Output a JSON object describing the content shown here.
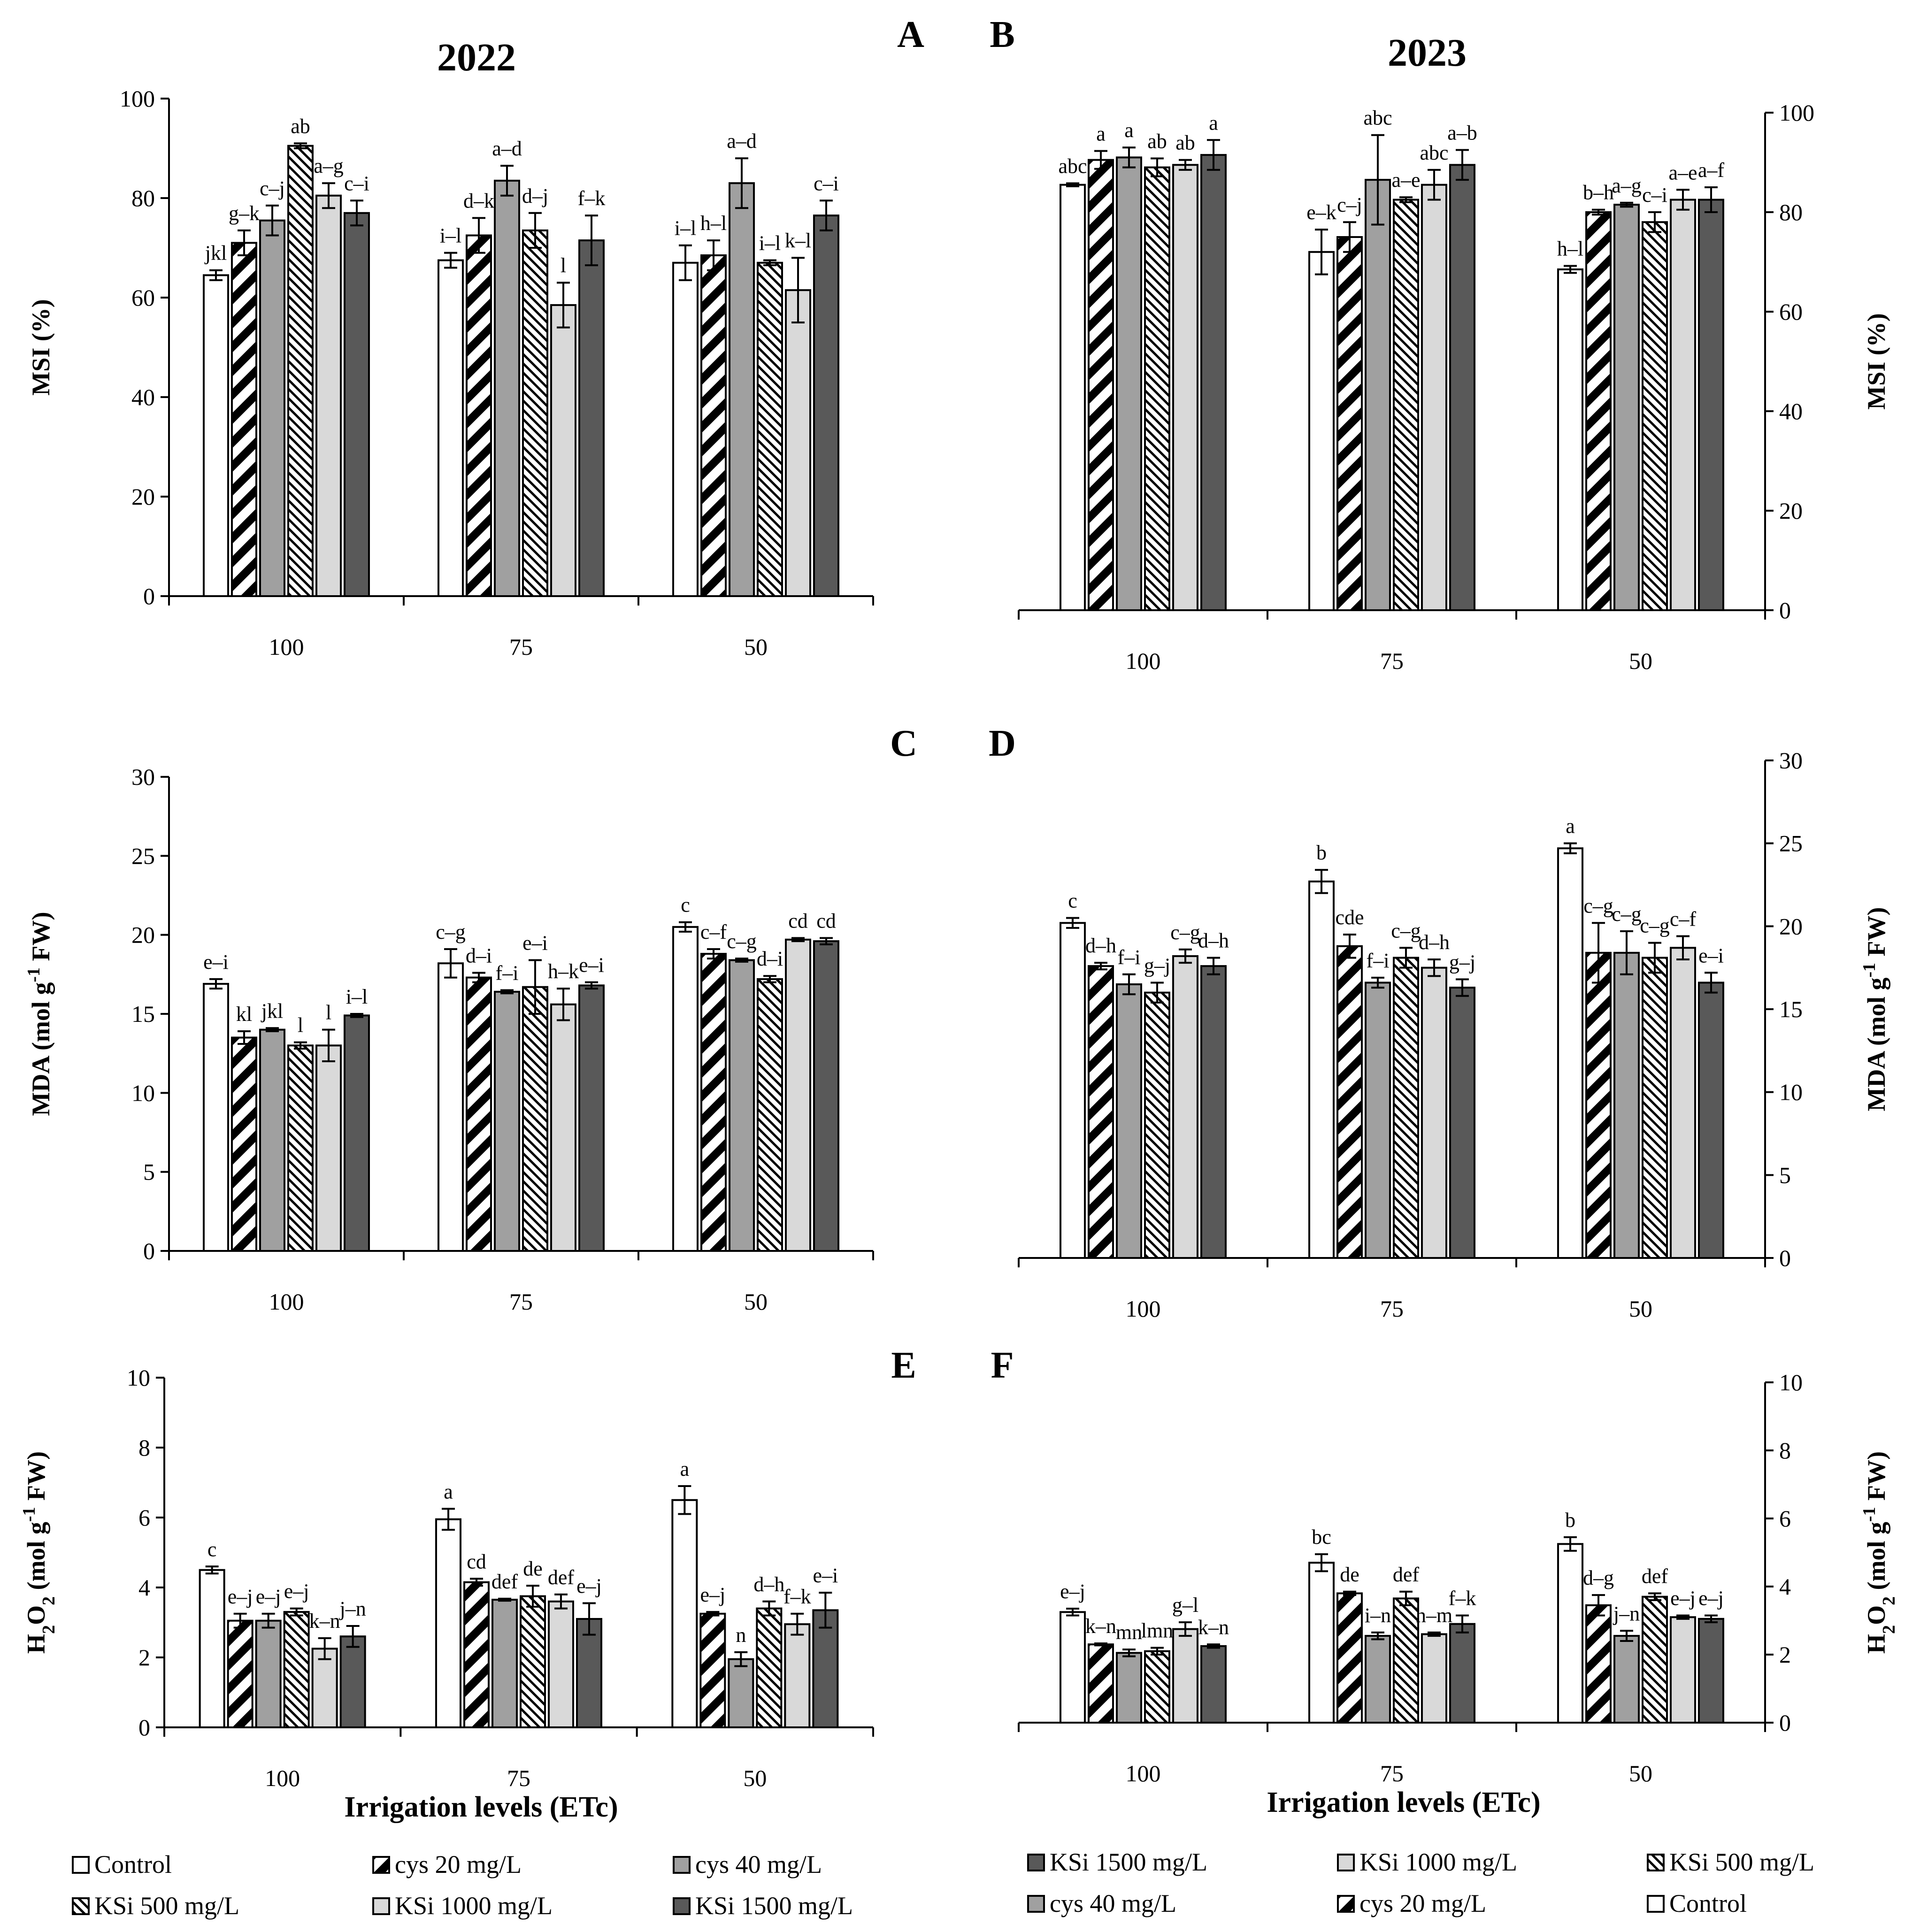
{
  "chart_data": [
    {
      "type": "bar",
      "panel": "A",
      "title": "2022",
      "ylabel": "MSI (%)",
      "ylabel_sub": "",
      "ylabel_sup": "",
      "ylabel_tail": "",
      "axis_side": "left",
      "ylim": [
        0,
        100
      ],
      "ystep": 20,
      "xlabel": "",
      "categories": [
        "100",
        "75",
        "50"
      ],
      "series": [
        {
          "name": "Control",
          "values": [
            64.5,
            67.5,
            67
          ],
          "errors": [
            1,
            1.5,
            3.5
          ],
          "letters": [
            "jkl",
            "i–l",
            "i–l"
          ]
        },
        {
          "name": "cys 20 mg/L",
          "values": [
            71,
            72.5,
            68.5
          ],
          "errors": [
            2.5,
            3.5,
            3
          ],
          "letters": [
            "g–k",
            "d–k",
            "h–l"
          ]
        },
        {
          "name": "cys 40 mg/L",
          "values": [
            75.5,
            83.5,
            83
          ],
          "errors": [
            3,
            3,
            5
          ],
          "letters": [
            "c–j",
            "a–d",
            "a–d"
          ]
        },
        {
          "name": "KSi 500 mg/L",
          "values": [
            90.5,
            73.5,
            67
          ],
          "errors": [
            0.5,
            3.5,
            0.5
          ],
          "letters": [
            "ab",
            "d–j",
            "i–l"
          ]
        },
        {
          "name": "KSi 1000 mg/L",
          "values": [
            80.5,
            58.5,
            61.5
          ],
          "errors": [
            2.5,
            4.5,
            6.5
          ],
          "letters": [
            "a–g",
            "l",
            "k–l"
          ]
        },
        {
          "name": "KSi 1500 mg/L",
          "values": [
            77,
            71.5,
            76.5
          ],
          "errors": [
            2.5,
            5,
            3
          ],
          "letters": [
            "c–i",
            "f–k",
            "c–i"
          ]
        }
      ]
    },
    {
      "type": "bar",
      "panel": "B",
      "title": "2023",
      "ylabel": "MSI (%)",
      "ylabel_sub": "",
      "ylabel_sup": "",
      "ylabel_tail": "",
      "axis_side": "right",
      "ylim": [
        0,
        100
      ],
      "ystep": 20,
      "xlabel": "",
      "categories": [
        "100",
        "75",
        "50"
      ],
      "series": [
        {
          "name": "Control",
          "values": [
            85.5,
            72,
            68.5
          ],
          "errors": [
            0.3,
            4.5,
            0.7
          ],
          "letters": [
            "abc",
            "e–k",
            "h–l"
          ]
        },
        {
          "name": "cys 20 mg/L",
          "values": [
            90.5,
            75,
            80
          ],
          "errors": [
            1.8,
            3,
            0.5
          ],
          "letters": [
            "a",
            "c–j",
            "b–h"
          ]
        },
        {
          "name": "cys 40 mg/L",
          "values": [
            91,
            86.5,
            81.5
          ],
          "errors": [
            2,
            9,
            0.4
          ],
          "letters": [
            "a",
            "abc",
            "a–g"
          ]
        },
        {
          "name": "KSi 500 mg/L",
          "values": [
            89,
            82.5,
            78
          ],
          "errors": [
            1.8,
            0.5,
            2
          ],
          "letters": [
            "ab",
            "a–e",
            "c–i"
          ]
        },
        {
          "name": "KSi 1000 mg/L",
          "values": [
            89.5,
            85.5,
            82.5
          ],
          "errors": [
            1,
            3,
            2
          ],
          "letters": [
            "ab",
            "abc",
            "a–e"
          ]
        },
        {
          "name": "KSi 1500 mg/L",
          "values": [
            91.5,
            89.5,
            82.5
          ],
          "errors": [
            3,
            3,
            2.5
          ],
          "letters": [
            "a",
            "a–b",
            "a–f"
          ]
        }
      ]
    },
    {
      "type": "bar",
      "panel": "C",
      "title": "",
      "ylabel": "MDA (mol g",
      "ylabel_sub": "",
      "ylabel_sup": "-1",
      "ylabel_tail": " FW)",
      "axis_side": "left",
      "ylim": [
        0,
        30
      ],
      "ystep": 5,
      "xlabel": "",
      "categories": [
        "100",
        "75",
        "50"
      ],
      "series": [
        {
          "name": "Control",
          "values": [
            16.9,
            18.2,
            20.5
          ],
          "errors": [
            0.3,
            0.9,
            0.3
          ],
          "letters": [
            "e–i",
            "c–g",
            "c"
          ]
        },
        {
          "name": "cys 20 mg/L",
          "values": [
            13.5,
            17.3,
            18.8
          ],
          "errors": [
            0.4,
            0.3,
            0.3
          ],
          "letters": [
            "kl",
            "d–i",
            "c–f"
          ]
        },
        {
          "name": "cys 40 mg/L",
          "values": [
            14,
            16.4,
            18.4
          ],
          "errors": [
            0.1,
            0.1,
            0.1
          ],
          "letters": [
            "jkl",
            "f–i",
            "c–g"
          ]
        },
        {
          "name": "KSi 500 mg/L",
          "values": [
            13,
            16.7,
            17.2
          ],
          "errors": [
            0.2,
            1.7,
            0.2
          ],
          "letters": [
            "l",
            "e–i",
            "d–i"
          ]
        },
        {
          "name": "KSi 1000 mg/L",
          "values": [
            13,
            15.6,
            19.7
          ],
          "errors": [
            1,
            1,
            0.1
          ],
          "letters": [
            "l",
            "h–k",
            "cd"
          ]
        },
        {
          "name": "KSi 1500 mg/L",
          "values": [
            14.9,
            16.8,
            19.6
          ],
          "errors": [
            0.1,
            0.2,
            0.2
          ],
          "letters": [
            "i–l",
            "e–i",
            "cd"
          ]
        }
      ]
    },
    {
      "type": "bar",
      "panel": "D",
      "title": "",
      "ylabel": "MDA (mol g",
      "ylabel_sub": "",
      "ylabel_sup": "-1",
      "ylabel_tail": " FW)",
      "axis_side": "right",
      "ylim": [
        0,
        30
      ],
      "ystep": 5,
      "xlabel": "",
      "categories": [
        "100",
        "75",
        "50"
      ],
      "series": [
        {
          "name": "Control",
          "values": [
            20.2,
            22.7,
            24.7
          ],
          "errors": [
            0.3,
            0.7,
            0.3
          ],
          "letters": [
            "c",
            "b",
            "a"
          ]
        },
        {
          "name": "cys 20 mg/L",
          "values": [
            17.6,
            18.8,
            18.4
          ],
          "errors": [
            0.2,
            0.7,
            1.8
          ],
          "letters": [
            "d–h",
            "cde",
            "c–g"
          ]
        },
        {
          "name": "cys 40 mg/L",
          "values": [
            16.5,
            16.6,
            18.4
          ],
          "errors": [
            0.6,
            0.3,
            1.3
          ],
          "letters": [
            "f–i",
            "f–i",
            "c–g"
          ]
        },
        {
          "name": "KSi 500 mg/L",
          "values": [
            16,
            18.1,
            18.1
          ],
          "errors": [
            0.6,
            0.6,
            0.9
          ],
          "letters": [
            "g–j",
            "c–g",
            "c–g"
          ]
        },
        {
          "name": "KSi 1000 mg/L",
          "values": [
            18.2,
            17.5,
            18.7
          ],
          "errors": [
            0.4,
            0.5,
            0.7
          ],
          "letters": [
            "c–g",
            "d–h",
            "c–f"
          ]
        },
        {
          "name": "KSi 1500 mg/L",
          "values": [
            17.6,
            16.3,
            16.6
          ],
          "errors": [
            0.5,
            0.5,
            0.6
          ],
          "letters": [
            "d–h",
            "g–j",
            "e–i"
          ]
        }
      ]
    },
    {
      "type": "bar",
      "panel": "E",
      "title": "",
      "ylabel": "H",
      "ylabel_sub": "2",
      "ylabel_sup": "",
      "ylabel_tail": "O",
      "ylabel_sub2": "2",
      "ylabel_tail2": " (mol g",
      "ylabel_sup2": "-1",
      "ylabel_tail3": " FW)",
      "axis_side": "left",
      "ylim": [
        0,
        10
      ],
      "ystep": 2,
      "xlabel": "Irrigation levels (ETc)",
      "categories": [
        "100",
        "75",
        "50"
      ],
      "series": [
        {
          "name": "Control",
          "values": [
            4.5,
            5.95,
            6.5
          ],
          "errors": [
            0.1,
            0.3,
            0.4
          ],
          "letters": [
            "c",
            "a",
            "a"
          ]
        },
        {
          "name": "cys 20 mg/L",
          "values": [
            3.05,
            4.15,
            3.25
          ],
          "errors": [
            0.2,
            0.1,
            0.05
          ],
          "letters": [
            "e–j",
            "cd",
            "e–j"
          ]
        },
        {
          "name": "cys 40 mg/L",
          "values": [
            3.05,
            3.65,
            1.95
          ],
          "errors": [
            0.2,
            0.03,
            0.2
          ],
          "letters": [
            "e–j",
            "def",
            "n"
          ]
        },
        {
          "name": "KSi 500 mg/L",
          "values": [
            3.3,
            3.75,
            3.4
          ],
          "errors": [
            0.1,
            0.3,
            0.2
          ],
          "letters": [
            "e–j",
            "de",
            "d–h"
          ]
        },
        {
          "name": "KSi 1000 mg/L",
          "values": [
            2.25,
            3.6,
            2.95
          ],
          "errors": [
            0.3,
            0.2,
            0.3
          ],
          "letters": [
            "k–n",
            "def",
            "f–k"
          ]
        },
        {
          "name": "KSi 1500 mg/L",
          "values": [
            2.6,
            3.1,
            3.35
          ],
          "errors": [
            0.3,
            0.45,
            0.5
          ],
          "letters": [
            "j–n",
            "e–j",
            "e–i"
          ]
        }
      ]
    },
    {
      "type": "bar",
      "panel": "F",
      "title": "",
      "ylabel": "H",
      "ylabel_sub": "2",
      "ylabel_sup": "",
      "ylabel_tail": "O",
      "ylabel_sub2": "2",
      "ylabel_tail2": " (mol g",
      "ylabel_sup2": "-1",
      "ylabel_tail3": " FW)",
      "axis_side": "right",
      "ylim": [
        0,
        10
      ],
      "ystep": 2,
      "xlabel": "Irrigation levels (ETc)",
      "categories": [
        "100",
        "75",
        "50"
      ],
      "series": [
        {
          "name": "Control",
          "values": [
            3.25,
            4.7,
            5.25
          ],
          "errors": [
            0.1,
            0.25,
            0.2
          ],
          "letters": [
            "e–j",
            "bc",
            "b"
          ]
        },
        {
          "name": "cys 20 mg/L",
          "values": [
            2.3,
            3.8,
            3.45
          ],
          "errors": [
            0.03,
            0.05,
            0.3
          ],
          "letters": [
            "k–n",
            "de",
            "d–g"
          ]
        },
        {
          "name": "cys 40 mg/L",
          "values": [
            2.05,
            2.55,
            2.55
          ],
          "errors": [
            0.1,
            0.1,
            0.15
          ],
          "letters": [
            "mn",
            "i–n",
            "j–n"
          ]
        },
        {
          "name": "KSi 500 mg/L",
          "values": [
            2.1,
            3.65,
            3.7
          ],
          "errors": [
            0.1,
            0.2,
            0.1
          ],
          "letters": [
            "lmn",
            "def",
            "def"
          ]
        },
        {
          "name": "KSi 1000 mg/L",
          "values": [
            2.75,
            2.6,
            3.1
          ],
          "errors": [
            0.2,
            0.05,
            0.05
          ],
          "letters": [
            "g–l",
            "h–m",
            "e–j"
          ]
        },
        {
          "name": "KSi 1500 mg/L",
          "values": [
            2.25,
            2.9,
            3.05
          ],
          "errors": [
            0.05,
            0.25,
            0.1
          ],
          "letters": [
            "k–n",
            "f–k",
            "e–j"
          ]
        }
      ]
    }
  ],
  "legend": {
    "left": [
      "Control",
      "cys 20 mg/L",
      "cys 40 mg/L",
      "KSi 500 mg/L",
      "KSi 1000 mg/L",
      "KSi 1500 mg/L"
    ],
    "right": [
      "KSi 1500 mg/L",
      "KSi 1000 mg/L",
      "KSi 500 mg/L",
      "cys 40 mg/L",
      "cys 20 mg/L",
      "Control"
    ]
  },
  "styles": {
    "Control": {
      "fill": "#ffffff",
      "pattern": "none"
    },
    "cys 20 mg/L": {
      "fill": "#ffffff",
      "pattern": "wdiag"
    },
    "cys 40 mg/L": {
      "fill": "#a0a0a0",
      "pattern": "none"
    },
    "KSi 500 mg/L": {
      "fill": "#ffffff",
      "pattern": "dash"
    },
    "KSi 1000 mg/L": {
      "fill": "#d9d9d9",
      "pattern": "none"
    },
    "KSi 1500 mg/L": {
      "fill": "#595959",
      "pattern": "none"
    }
  }
}
